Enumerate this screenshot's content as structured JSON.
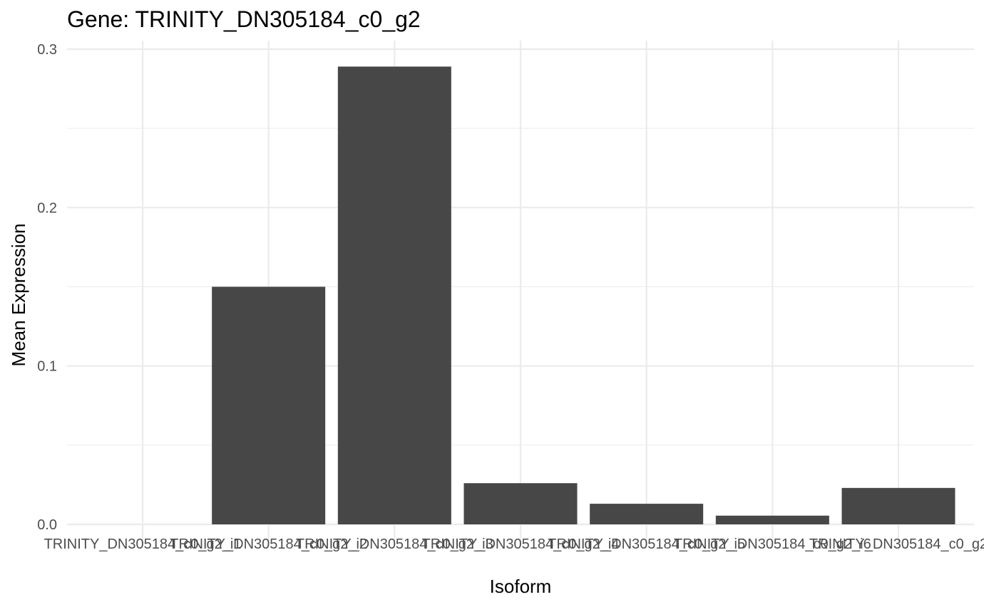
{
  "chart_data": {
    "type": "bar",
    "title": "Gene: TRINITY_DN305184_c0_g2",
    "xlabel": "Isoform",
    "ylabel": "Mean Expression",
    "categories": [
      "TRINITY_DN305184_c0_g2_i1",
      "TRINITY_DN305184_c0_g2_i2",
      "TRINITY_DN305184_c0_g2_i3",
      "TRINITY_DN305184_c0_g2_i4",
      "TRINITY_DN305184_c0_g2_i5",
      "TRINITY_DN305184_c0_g2_i6",
      "TRINITY_DN305184_c0_g2"
    ],
    "values": [
      0.0,
      0.15,
      0.289,
      0.026,
      0.013,
      0.0055,
      0.023
    ],
    "ylim": [
      -0.015,
      0.3
    ],
    "yticks": [
      0.0,
      0.1,
      0.2,
      0.3
    ],
    "ytick_labels": [
      "0.0",
      "0.1",
      "0.2",
      "0.3"
    ],
    "grid": true,
    "bar_color": "#474747",
    "grid_color": "#ebebeb"
  }
}
